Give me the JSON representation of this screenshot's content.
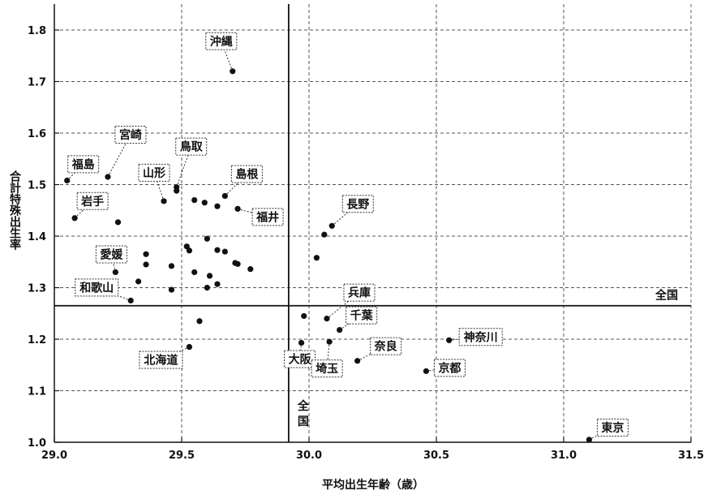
{
  "chart_data": {
    "type": "scatter",
    "xlabel": "平均出生年齢（歳）",
    "ylabel": "合計特殊出生率",
    "xlim": [
      29.0,
      31.5
    ],
    "ylim": [
      1.0,
      1.85
    ],
    "xticks": [
      "29.0",
      "29.5",
      "30.0",
      "30.5",
      "31.0",
      "31.5"
    ],
    "yticks": [
      "1.0",
      "1.1",
      "1.2",
      "1.3",
      "1.4",
      "1.5",
      "1.6",
      "1.7",
      "1.8"
    ],
    "grid": "dashed",
    "national": {
      "x": 29.92,
      "y": 1.265,
      "h_label": "全国",
      "v_label": "全国"
    },
    "labeled_points": [
      {
        "name": "沖縄",
        "x": 29.7,
        "y": 1.72
      },
      {
        "name": "宮崎",
        "x": 29.21,
        "y": 1.515
      },
      {
        "name": "福島",
        "x": 29.05,
        "y": 1.508
      },
      {
        "name": "鳥取",
        "x": 29.48,
        "y": 1.495
      },
      {
        "name": "山形",
        "x": 29.43,
        "y": 1.468
      },
      {
        "name": "島根",
        "x": 29.67,
        "y": 1.478
      },
      {
        "name": "福井",
        "x": 29.72,
        "y": 1.453
      },
      {
        "name": "岩手",
        "x": 29.08,
        "y": 1.435
      },
      {
        "name": "長野",
        "x": 30.09,
        "y": 1.42
      },
      {
        "name": "愛媛",
        "x": 29.24,
        "y": 1.33
      },
      {
        "name": "和歌山",
        "x": 29.3,
        "y": 1.275
      },
      {
        "name": "兵庫",
        "x": 30.07,
        "y": 1.24
      },
      {
        "name": "千葉",
        "x": 30.12,
        "y": 1.218
      },
      {
        "name": "神奈川",
        "x": 30.55,
        "y": 1.198
      },
      {
        "name": "北海道",
        "x": 29.53,
        "y": 1.185
      },
      {
        "name": "大阪",
        "x": 29.97,
        "y": 1.193
      },
      {
        "name": "埼玉",
        "x": 30.08,
        "y": 1.195
      },
      {
        "name": "奈良",
        "x": 30.19,
        "y": 1.158
      },
      {
        "name": "京都",
        "x": 30.46,
        "y": 1.138
      },
      {
        "name": "東京",
        "x": 31.1,
        "y": 1.005
      }
    ],
    "unlabeled_points": [
      {
        "x": 29.25,
        "y": 1.427
      },
      {
        "x": 29.55,
        "y": 1.47
      },
      {
        "x": 29.59,
        "y": 1.465
      },
      {
        "x": 29.64,
        "y": 1.458
      },
      {
        "x": 29.48,
        "y": 1.488
      },
      {
        "x": 29.6,
        "y": 1.395
      },
      {
        "x": 29.52,
        "y": 1.38
      },
      {
        "x": 29.53,
        "y": 1.372
      },
      {
        "x": 29.64,
        "y": 1.373
      },
      {
        "x": 29.67,
        "y": 1.37
      },
      {
        "x": 29.36,
        "y": 1.365
      },
      {
        "x": 29.36,
        "y": 1.345
      },
      {
        "x": 29.46,
        "y": 1.342
      },
      {
        "x": 29.71,
        "y": 1.348
      },
      {
        "x": 29.72,
        "y": 1.346
      },
      {
        "x": 29.77,
        "y": 1.336
      },
      {
        "x": 29.55,
        "y": 1.33
      },
      {
        "x": 29.61,
        "y": 1.323
      },
      {
        "x": 29.33,
        "y": 1.312
      },
      {
        "x": 29.64,
        "y": 1.307
      },
      {
        "x": 29.6,
        "y": 1.3
      },
      {
        "x": 29.46,
        "y": 1.296
      },
      {
        "x": 29.57,
        "y": 1.235
      },
      {
        "x": 29.98,
        "y": 1.245
      },
      {
        "x": 30.03,
        "y": 1.358
      },
      {
        "x": 30.06,
        "y": 1.403
      }
    ]
  }
}
